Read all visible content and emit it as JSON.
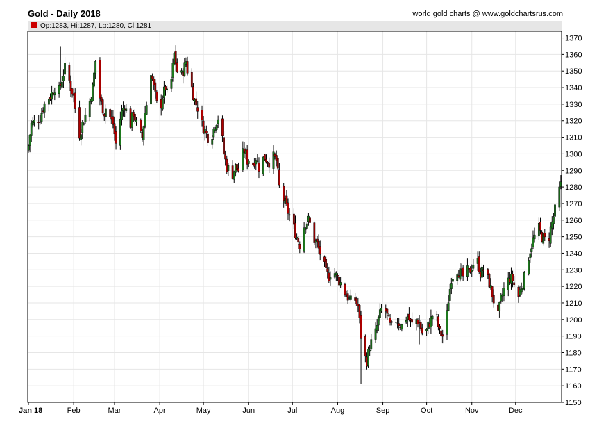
{
  "chart_data": {
    "type": "candlestick",
    "title": "Gold - Daily 2018",
    "credit": "world gold charts @ www.goldchartsrus.com",
    "ohlc_label": "Op:1283, Hi:1287, Lo:1280, Cl:1281",
    "y_ticks": [
      1150,
      1160,
      1170,
      1180,
      1190,
      1200,
      1210,
      1220,
      1230,
      1240,
      1250,
      1260,
      1270,
      1280,
      1290,
      1300,
      1310,
      1320,
      1330,
      1340,
      1350,
      1360,
      1370
    ],
    "ylim": [
      1150,
      1374
    ],
    "x_ticks": [
      {
        "label": "Jan 18",
        "day": 0
      },
      {
        "label": "Feb",
        "day": 31
      },
      {
        "label": "Mar",
        "day": 59
      },
      {
        "label": "Apr",
        "day": 90
      },
      {
        "label": "May",
        "day": 120
      },
      {
        "label": "Jun",
        "day": 151
      },
      {
        "label": "Jul",
        "day": 181
      },
      {
        "label": "Aug",
        "day": 212
      },
      {
        "label": "Sep",
        "day": 243
      },
      {
        "label": "Oct",
        "day": 273
      },
      {
        "label": "Nov",
        "day": 304
      },
      {
        "label": "Dec",
        "day": 334
      }
    ],
    "grid": true,
    "colors": {
      "up": "#1e7a1e",
      "down": "#b00000",
      "wick": "#000000",
      "grid": "#e6e6e6"
    },
    "close_path": [
      [
        0,
        1305
      ],
      [
        2,
        1318
      ],
      [
        5,
        1320
      ],
      [
        8,
        1322
      ],
      [
        10,
        1328
      ],
      [
        12,
        1332
      ],
      [
        15,
        1335
      ],
      [
        18,
        1340
      ],
      [
        21,
        1338
      ],
      [
        23,
        1345
      ],
      [
        25,
        1352
      ],
      [
        27,
        1348
      ],
      [
        29,
        1340
      ],
      [
        31,
        1335
      ],
      [
        33,
        1320
      ],
      [
        35,
        1312
      ],
      [
        37,
        1318
      ],
      [
        40,
        1326
      ],
      [
        42,
        1332
      ],
      [
        44,
        1340
      ],
      [
        46,
        1356
      ],
      [
        48,
        1338
      ],
      [
        50,
        1330
      ],
      [
        52,
        1325
      ],
      [
        54,
        1330
      ],
      [
        56,
        1322
      ],
      [
        58,
        1318
      ],
      [
        60,
        1306
      ],
      [
        62,
        1318
      ],
      [
        64,
        1325
      ],
      [
        66,
        1330
      ],
      [
        68,
        1322
      ],
      [
        70,
        1318
      ],
      [
        72,
        1325
      ],
      [
        74,
        1318
      ],
      [
        76,
        1312
      ],
      [
        78,
        1310
      ],
      [
        80,
        1325
      ],
      [
        82,
        1335
      ],
      [
        84,
        1350
      ],
      [
        86,
        1340
      ],
      [
        88,
        1330
      ],
      [
        90,
        1325
      ],
      [
        92,
        1335
      ],
      [
        94,
        1340
      ],
      [
        96,
        1332
      ],
      [
        98,
        1345
      ],
      [
        100,
        1360
      ],
      [
        102,
        1350
      ],
      [
        104,
        1345
      ],
      [
        106,
        1350
      ],
      [
        108,
        1356
      ],
      [
        110,
        1345
      ],
      [
        112,
        1340
      ],
      [
        114,
        1332
      ],
      [
        116,
        1328
      ],
      [
        118,
        1320
      ],
      [
        120,
        1316
      ],
      [
        122,
        1312
      ],
      [
        124,
        1308
      ],
      [
        126,
        1312
      ],
      [
        128,
        1318
      ],
      [
        130,
        1322
      ],
      [
        132,
        1316
      ],
      [
        134,
        1300
      ],
      [
        136,
        1292
      ],
      [
        138,
        1290
      ],
      [
        140,
        1288
      ],
      [
        142,
        1292
      ],
      [
        144,
        1290
      ],
      [
        146,
        1298
      ],
      [
        148,
        1302
      ],
      [
        150,
        1296
      ],
      [
        152,
        1298
      ],
      [
        154,
        1294
      ],
      [
        156,
        1298
      ],
      [
        158,
        1292
      ],
      [
        160,
        1296
      ],
      [
        162,
        1298
      ],
      [
        164,
        1296
      ],
      [
        166,
        1294
      ],
      [
        168,
        1298
      ],
      [
        170,
        1296
      ],
      [
        172,
        1280
      ],
      [
        174,
        1275
      ],
      [
        176,
        1270
      ],
      [
        178,
        1265
      ],
      [
        180,
        1260
      ],
      [
        182,
        1255
      ],
      [
        184,
        1250
      ],
      [
        186,
        1245
      ],
      [
        188,
        1255
      ],
      [
        190,
        1258
      ],
      [
        192,
        1260
      ],
      [
        194,
        1255
      ],
      [
        196,
        1248
      ],
      [
        198,
        1245
      ],
      [
        200,
        1240
      ],
      [
        202,
        1235
      ],
      [
        204,
        1228
      ],
      [
        206,
        1226
      ],
      [
        208,
        1230
      ],
      [
        210,
        1228
      ],
      [
        212,
        1225
      ],
      [
        214,
        1222
      ],
      [
        216,
        1218
      ],
      [
        218,
        1215
      ],
      [
        220,
        1212
      ],
      [
        222,
        1210
      ],
      [
        224,
        1212
      ],
      [
        226,
        1208
      ],
      [
        228,
        1190
      ],
      [
        230,
        1178
      ],
      [
        232,
        1175
      ],
      [
        234,
        1184
      ],
      [
        236,
        1188
      ],
      [
        238,
        1192
      ],
      [
        240,
        1200
      ],
      [
        242,
        1206
      ],
      [
        244,
        1208
      ],
      [
        246,
        1202
      ],
      [
        248,
        1196
      ],
      [
        250,
        1194
      ],
      [
        252,
        1200
      ],
      [
        254,
        1198
      ],
      [
        256,
        1196
      ],
      [
        258,
        1200
      ],
      [
        260,
        1202
      ],
      [
        262,
        1198
      ],
      [
        264,
        1196
      ],
      [
        266,
        1200
      ],
      [
        268,
        1198
      ],
      [
        270,
        1192
      ],
      [
        272,
        1190
      ],
      [
        274,
        1196
      ],
      [
        276,
        1200
      ],
      [
        278,
        1205
      ],
      [
        280,
        1200
      ],
      [
        282,
        1192
      ],
      [
        284,
        1190
      ],
      [
        286,
        1194
      ],
      [
        288,
        1212
      ],
      [
        290,
        1225
      ],
      [
        292,
        1228
      ],
      [
        294,
        1230
      ],
      [
        296,
        1228
      ],
      [
        298,
        1226
      ],
      [
        300,
        1230
      ],
      [
        302,
        1228
      ],
      [
        304,
        1232
      ],
      [
        306,
        1236
      ],
      [
        308,
        1235
      ],
      [
        310,
        1228
      ],
      [
        312,
        1230
      ],
      [
        314,
        1226
      ],
      [
        316,
        1222
      ],
      [
        318,
        1215
      ],
      [
        320,
        1208
      ],
      [
        322,
        1202
      ],
      [
        324,
        1212
      ],
      [
        326,
        1218
      ],
      [
        328,
        1222
      ],
      [
        330,
        1225
      ],
      [
        332,
        1224
      ],
      [
        334,
        1218
      ],
      [
        336,
        1214
      ],
      [
        338,
        1220
      ],
      [
        340,
        1225
      ],
      [
        342,
        1235
      ],
      [
        344,
        1242
      ],
      [
        346,
        1248
      ],
      [
        348,
        1252
      ],
      [
        350,
        1255
      ],
      [
        352,
        1250
      ],
      [
        354,
        1248
      ],
      [
        356,
        1245
      ],
      [
        358,
        1255
      ],
      [
        360,
        1262
      ],
      [
        362,
        1270
      ],
      [
        364,
        1278
      ],
      [
        365,
        1281
      ]
    ],
    "spikes": [
      {
        "day": 22,
        "high": 1365
      },
      {
        "day": 97,
        "high": 1369
      },
      {
        "day": 228,
        "low": 1161
      },
      {
        "day": 230,
        "low": 1170
      },
      {
        "day": 268,
        "low": 1185
      },
      {
        "day": 307,
        "high": 1245
      },
      {
        "day": 321,
        "low": 1197
      }
    ]
  }
}
